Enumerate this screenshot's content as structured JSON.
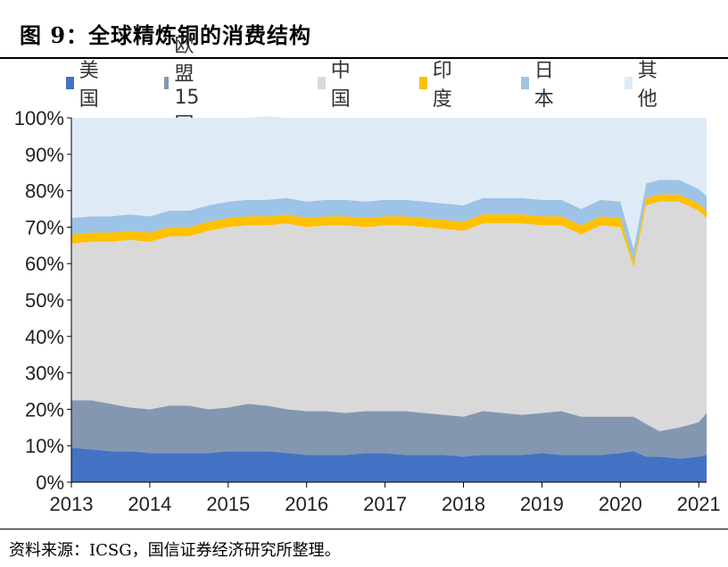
{
  "title": "图 9：全球精炼铜的消费结构",
  "source": "资料来源：ICSG，国信证券经济研究所整理。",
  "colors": {
    "美国": "#4472c4",
    "欧盟15国": "#8497b0",
    "中国": "#d9d9d9",
    "印度": "#ffc000",
    "日本": "#9dc3e6",
    "其他": "#deebf7"
  },
  "chart_data": {
    "type": "area",
    "stacked": true,
    "percent": true,
    "title": "",
    "xlabel": "",
    "ylabel": "",
    "ylim": [
      0,
      100
    ],
    "xlim": [
      2013,
      2021.1
    ],
    "x_ticks": [
      "2013",
      "2014",
      "2015",
      "2016",
      "2017",
      "2018",
      "2019",
      "2020",
      "2021"
    ],
    "y_ticks": [
      "0%",
      "10%",
      "20%",
      "30%",
      "40%",
      "50%",
      "60%",
      "70%",
      "80%",
      "90%",
      "100%"
    ],
    "legend_position": "top",
    "x": [
      2013.0,
      2013.25,
      2013.5,
      2013.75,
      2014.0,
      2014.25,
      2014.5,
      2014.75,
      2015.0,
      2015.25,
      2015.5,
      2015.75,
      2016.0,
      2016.25,
      2016.5,
      2016.75,
      2017.0,
      2017.25,
      2017.5,
      2017.75,
      2018.0,
      2018.25,
      2018.5,
      2018.75,
      2019.0,
      2019.25,
      2019.5,
      2019.75,
      2020.0,
      2020.17,
      2020.33,
      2020.5,
      2020.75,
      2021.0,
      2021.1
    ],
    "series": [
      {
        "name": "美国",
        "values": [
          9.5,
          9,
          8.5,
          8.5,
          8,
          8,
          8,
          8,
          8.5,
          8.5,
          8.5,
          8,
          7.5,
          7.5,
          7.5,
          8,
          8,
          7.5,
          7.5,
          7.5,
          7,
          7.5,
          7.5,
          7.5,
          8,
          7.5,
          7.5,
          7.5,
          8,
          8.5,
          7,
          7,
          6.5,
          7,
          7.5
        ]
      },
      {
        "name": "欧盟15国",
        "values": [
          13,
          13.5,
          13,
          12,
          12,
          13,
          13,
          12,
          12,
          13,
          12.5,
          12,
          12,
          12,
          11.5,
          11.5,
          11.5,
          12,
          11.5,
          11,
          11,
          12,
          11.5,
          11,
          11,
          12,
          10.5,
          10.5,
          10,
          9.5,
          9,
          7,
          8.5,
          9.5,
          11.5
        ]
      },
      {
        "name": "中国",
        "values": [
          43,
          43.5,
          44.5,
          46,
          46,
          46.5,
          46.5,
          49,
          49.5,
          49,
          49.5,
          51,
          50.5,
          51,
          51.5,
          50.5,
          51,
          51,
          51,
          51,
          51,
          51.5,
          52,
          52.5,
          51.5,
          51,
          50,
          52.5,
          52,
          41,
          60,
          63,
          62,
          58,
          53.5
        ]
      },
      {
        "name": "印度",
        "values": [
          2.5,
          2.5,
          2.5,
          2.5,
          2.5,
          2.5,
          2.5,
          2.5,
          2.5,
          2.5,
          2.5,
          2.5,
          2.5,
          2.5,
          2.5,
          2.5,
          2.5,
          2.5,
          2.5,
          2.5,
          2.5,
          2.5,
          2.5,
          2.5,
          2.5,
          2.5,
          2.5,
          2.5,
          2.5,
          1.5,
          2,
          2,
          2,
          2,
          2
        ]
      },
      {
        "name": "日本",
        "values": [
          4.5,
          4.5,
          4.5,
          4.5,
          4.5,
          4.5,
          4.5,
          4.5,
          4.5,
          4.5,
          4.5,
          4.5,
          4.5,
          4.5,
          4.5,
          4.5,
          4.5,
          4.5,
          4.5,
          4.5,
          4.5,
          4.5,
          4.5,
          4.5,
          4.5,
          4.5,
          4.5,
          4.5,
          4.5,
          3.5,
          4,
          4,
          4,
          4,
          4
        ]
      },
      {
        "name": "其他",
        "values": [
          27.5,
          27,
          27,
          26.5,
          27,
          25.5,
          25.5,
          24,
          23,
          22.5,
          23,
          22,
          23,
          22.5,
          22.5,
          23,
          22.5,
          22.5,
          23,
          23.5,
          24,
          22,
          22,
          22,
          22.5,
          22.5,
          25,
          22.5,
          23,
          36,
          18,
          17,
          17,
          19.5,
          21.5
        ]
      }
    ]
  }
}
